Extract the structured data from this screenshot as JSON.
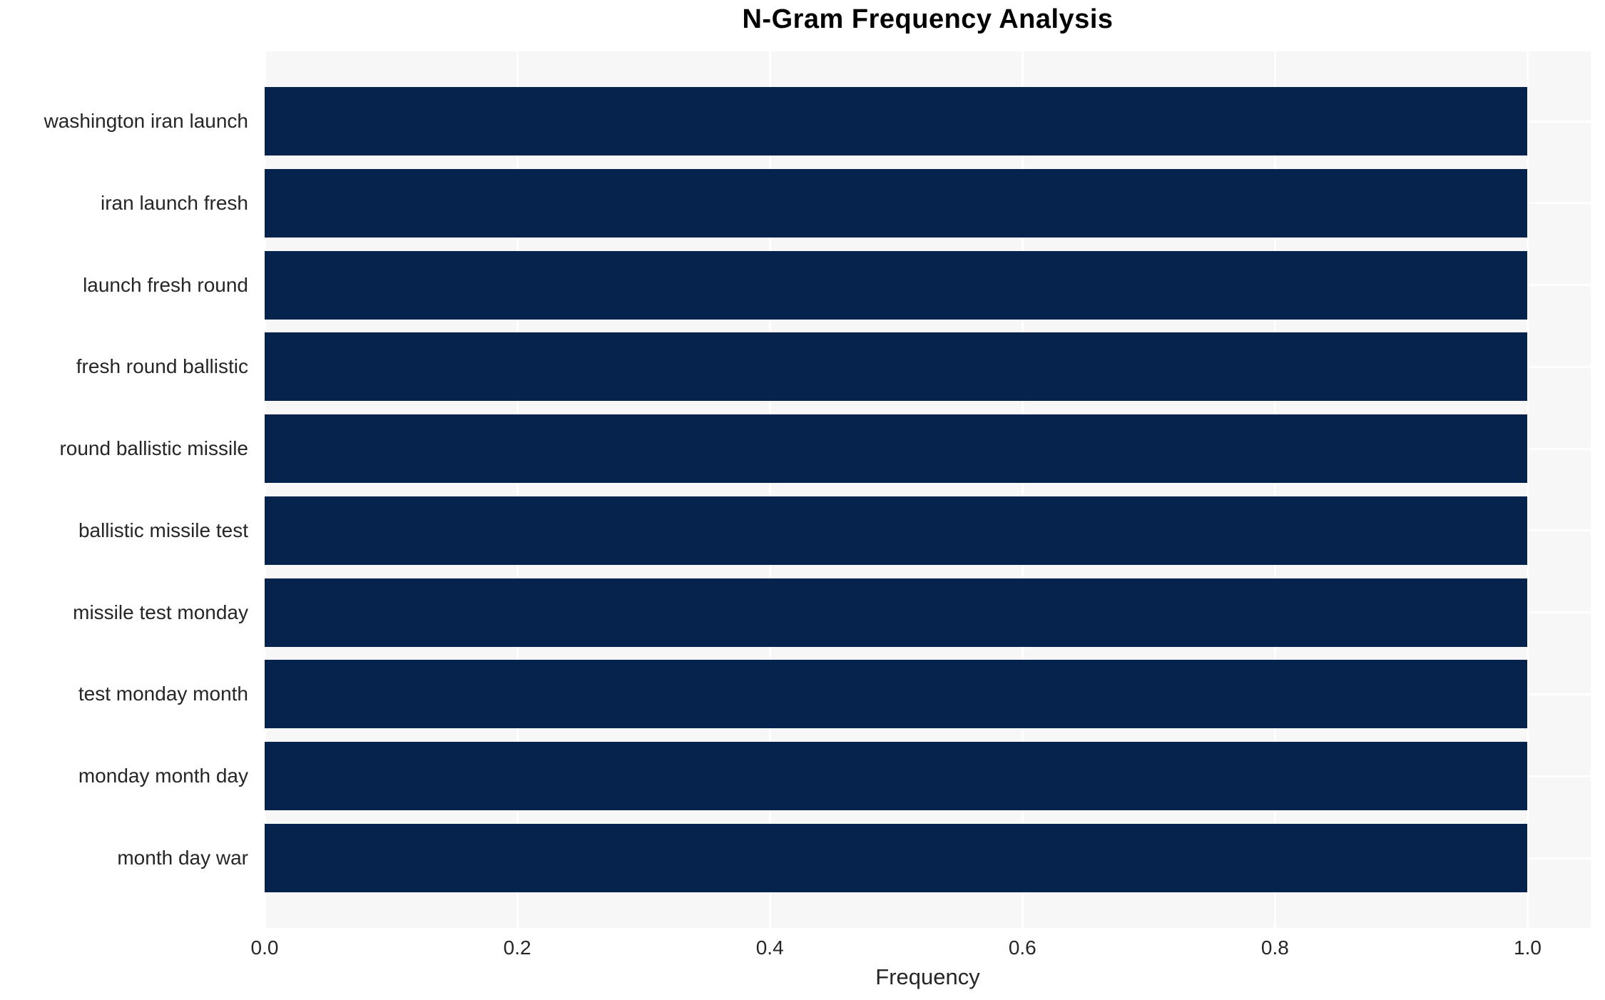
{
  "chart_data": {
    "type": "bar",
    "orientation": "horizontal",
    "title": "N-Gram Frequency Analysis",
    "xlabel": "Frequency",
    "ylabel": "",
    "categories": [
      "washington iran launch",
      "iran launch fresh",
      "launch fresh round",
      "fresh round ballistic",
      "round ballistic missile",
      "ballistic missile test",
      "missile test monday",
      "test monday month",
      "monday month day",
      "month day war"
    ],
    "values": [
      1.0,
      1.0,
      1.0,
      1.0,
      1.0,
      1.0,
      1.0,
      1.0,
      1.0,
      1.0
    ],
    "x_ticks": [
      {
        "value": 0.0,
        "label": "0.0"
      },
      {
        "value": 0.2,
        "label": "0.2"
      },
      {
        "value": 0.4,
        "label": "0.4"
      },
      {
        "value": 0.6,
        "label": "0.6"
      },
      {
        "value": 0.8,
        "label": "0.8"
      },
      {
        "value": 1.0,
        "label": "1.0"
      }
    ],
    "xlim": [
      0,
      1.05
    ],
    "grid": {
      "vertical": true,
      "horizontal": true,
      "style": "white lines on light gray plot background"
    },
    "legend": "none",
    "colors": {
      "bar": "#06234e",
      "plot_bg": "#f7f7f7",
      "grid": "#ffffff",
      "text": "#262626",
      "title": "#000000",
      "fig_bg": "#ffffff"
    }
  }
}
